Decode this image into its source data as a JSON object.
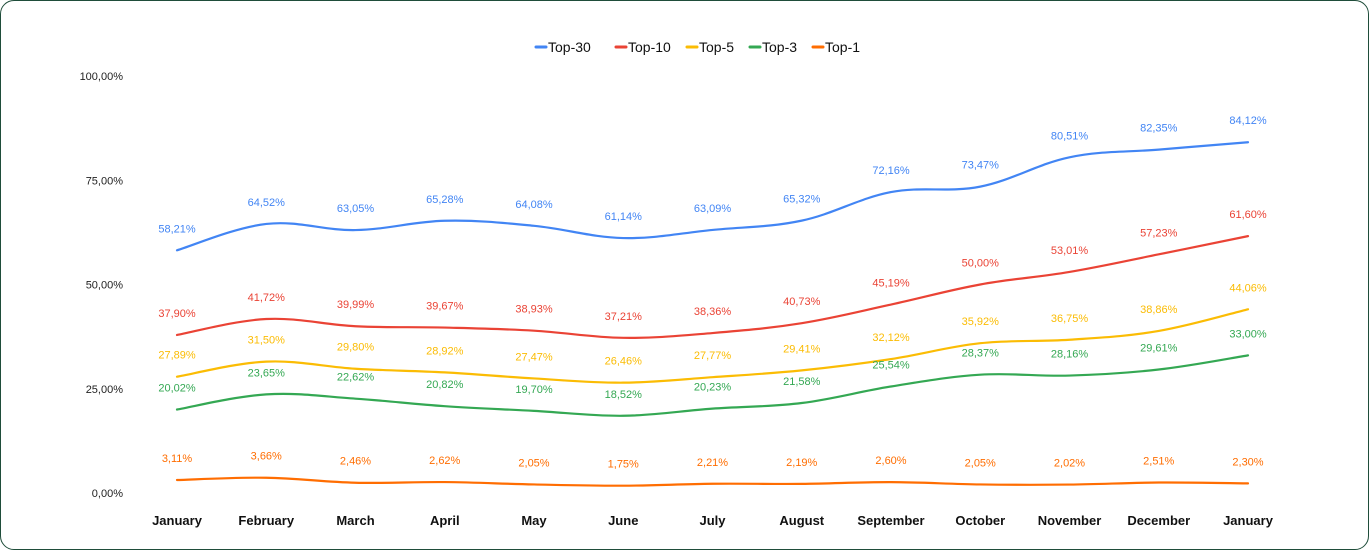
{
  "chart_data": {
    "type": "line",
    "title": "",
    "xlabel": "",
    "ylabel": "",
    "ylim": [
      0,
      100
    ],
    "legend_position": "top-center",
    "grid": false,
    "y_ticks": [
      "0,00%",
      "25,00%",
      "50,00%",
      "75,00%",
      "100,00%"
    ],
    "y_tick_values": [
      0,
      25,
      50,
      75,
      100
    ],
    "categories": [
      "January",
      "February",
      "March",
      "April",
      "May",
      "June",
      "July",
      "August",
      "September",
      "October",
      "November",
      "December",
      "January"
    ],
    "series": [
      {
        "name": "Top-30",
        "color": "#4285f4",
        "values": [
          58.21,
          64.52,
          63.05,
          65.28,
          64.08,
          61.14,
          63.09,
          65.32,
          72.16,
          73.47,
          80.51,
          82.35,
          84.12
        ],
        "labels": [
          "58,21%",
          "64,52%",
          "63,05%",
          "65,28%",
          "64,08%",
          "61,14%",
          "63,09%",
          "65,32%",
          "72,16%",
          "73,47%",
          "80,51%",
          "82,35%",
          "84,12%"
        ]
      },
      {
        "name": "Top-10",
        "color": "#ea4335",
        "values": [
          37.9,
          41.72,
          39.99,
          39.67,
          38.93,
          37.21,
          38.36,
          40.73,
          45.19,
          50.0,
          53.01,
          57.23,
          61.6
        ],
        "labels": [
          "37,90%",
          "41,72%",
          "39,99%",
          "39,67%",
          "38,93%",
          "37,21%",
          "38,36%",
          "40,73%",
          "45,19%",
          "50,00%",
          "53,01%",
          "57,23%",
          "61,60%"
        ]
      },
      {
        "name": "Top-5",
        "color": "#fbbc04",
        "values": [
          27.89,
          31.5,
          29.8,
          28.92,
          27.47,
          26.46,
          27.77,
          29.41,
          32.12,
          35.92,
          36.75,
          38.86,
          44.06
        ],
        "labels": [
          "27,89%",
          "31,50%",
          "29,80%",
          "28,92%",
          "27,47%",
          "26,46%",
          "27,77%",
          "29,41%",
          "32,12%",
          "35,92%",
          "36,75%",
          "38,86%",
          "44,06%"
        ]
      },
      {
        "name": "Top-3",
        "color": "#34a853",
        "values": [
          20.02,
          23.65,
          22.62,
          20.82,
          19.7,
          18.52,
          20.23,
          21.58,
          25.54,
          28.37,
          28.16,
          29.61,
          33.0
        ],
        "labels": [
          "20,02%",
          "23,65%",
          "22,62%",
          "20,82%",
          "19,70%",
          "18,52%",
          "20,23%",
          "21,58%",
          "25,54%",
          "28,37%",
          "28,16%",
          "29,61%",
          "33,00%"
        ]
      },
      {
        "name": "Top-1",
        "color": "#ff6d01",
        "values": [
          3.11,
          3.66,
          2.46,
          2.62,
          2.05,
          1.75,
          2.21,
          2.19,
          2.6,
          2.05,
          2.02,
          2.51,
          2.3
        ],
        "labels": [
          "3,11%",
          "3,66%",
          "2,46%",
          "2,62%",
          "2,05%",
          "1,75%",
          "2,21%",
          "2,19%",
          "2,60%",
          "2,05%",
          "2,02%",
          "2,51%",
          "2,30%"
        ]
      }
    ]
  }
}
